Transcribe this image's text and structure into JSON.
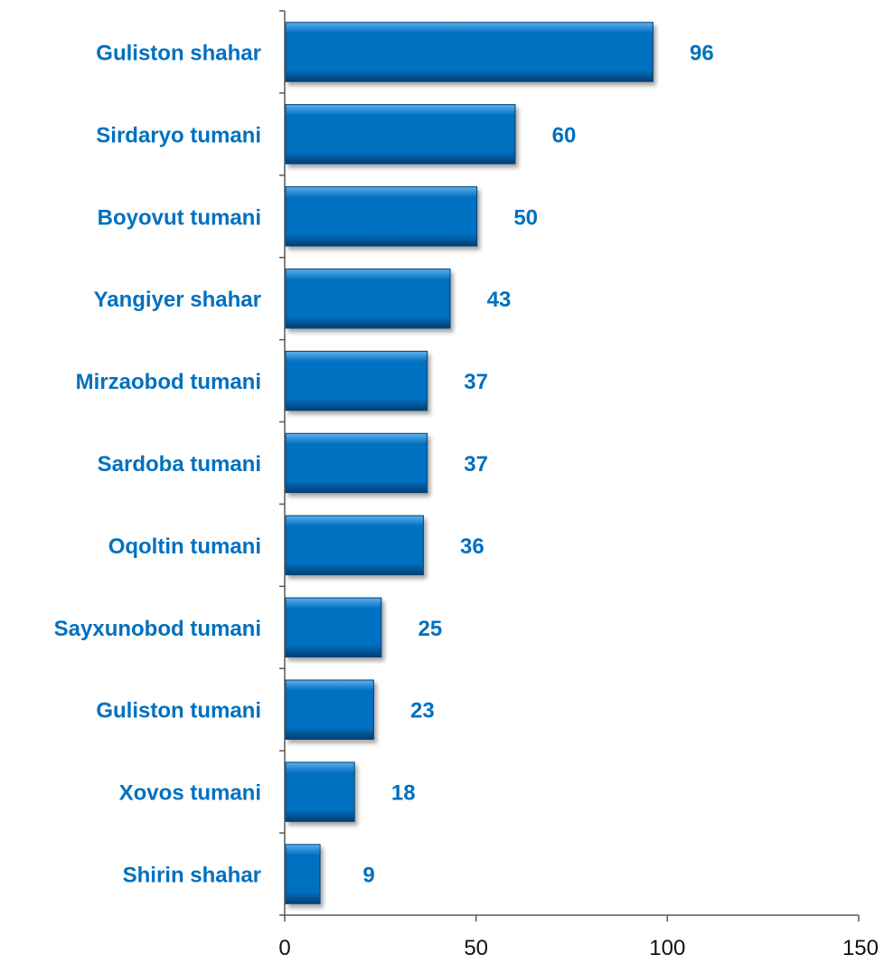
{
  "chart_data": {
    "type": "bar",
    "orientation": "horizontal",
    "title": "",
    "xlabel": "",
    "ylabel": "",
    "categories": [
      "Guliston shahar",
      "Sirdaryo tumani",
      "Boyovut tumani",
      "Yangiyer shahar",
      "Mirzaobod tumani",
      "Sardoba tumani",
      "Oqoltin tumani",
      "Sayxunobod tumani",
      "Guliston tumani",
      "Xovos tumani",
      "Shirin shahar"
    ],
    "values": [
      96,
      60,
      50,
      43,
      37,
      37,
      36,
      25,
      23,
      18,
      9
    ],
    "value_labels": [
      "96",
      "60",
      "50",
      "43",
      "37",
      "37",
      "36",
      "25",
      "23",
      "18",
      "9"
    ],
    "xlim": [
      0,
      150
    ],
    "x_ticks": [
      0,
      50,
      100,
      150
    ],
    "x_tick_labels": [
      "0",
      "50",
      "100",
      "150"
    ],
    "grid": false,
    "legend": "none",
    "colors": {
      "bar_fill": "#0070c0",
      "bar_highlight": "#5fb0ee",
      "bar_shadow": "#003f73",
      "label_text": "#0070c0",
      "tick_text": "#111111",
      "axis": "#595959"
    }
  }
}
